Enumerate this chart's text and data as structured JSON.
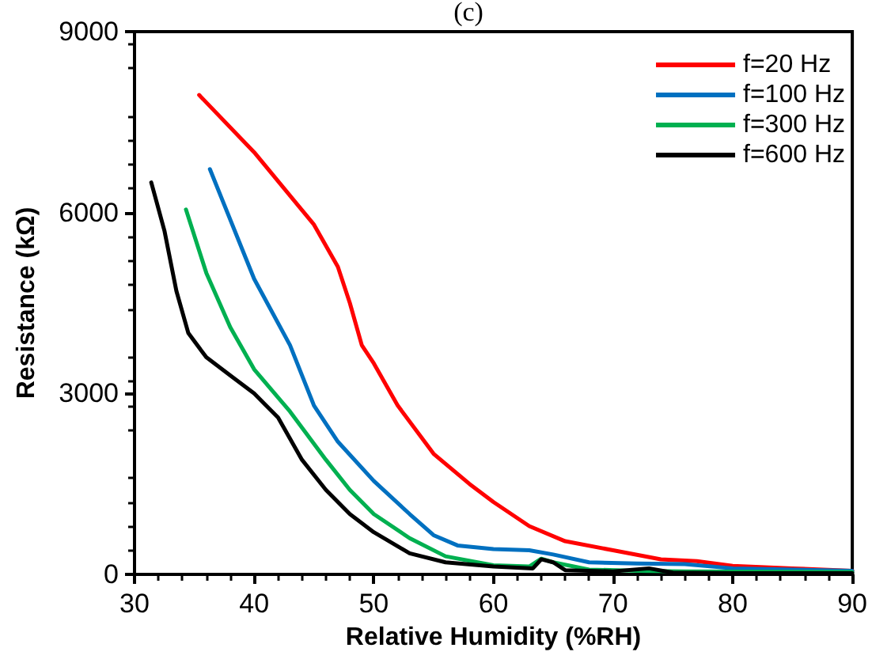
{
  "chart_data": {
    "type": "line",
    "title": "(c)",
    "xlabel": "Relative Humidity (%RH)",
    "ylabel": "Resistance (kΩ)",
    "xlim": [
      30,
      90
    ],
    "xticks": [
      30,
      40,
      50,
      60,
      70,
      80,
      90
    ],
    "ylim": [
      0,
      9000
    ],
    "yticks": [
      0,
      3000,
      6000,
      9000
    ],
    "grid": false,
    "legend": "top right",
    "marker": "none",
    "line_style": "solid",
    "series": [
      {
        "name": "f=20 Hz",
        "color": "#ff0000",
        "x": [
          35.4,
          40,
          45,
          47,
          48,
          49,
          50,
          52,
          55,
          58,
          60,
          63,
          66,
          70,
          74,
          77,
          80,
          85,
          90
        ],
        "values": [
          7950,
          7000,
          5800,
          5100,
          4500,
          3800,
          3500,
          2800,
          2000,
          1500,
          1200,
          800,
          550,
          400,
          250,
          220,
          140,
          100,
          60
        ]
      },
      {
        "name": "f=100 Hz",
        "color": "#0070c0",
        "x": [
          36.3,
          40,
          43,
          45,
          47,
          50,
          53,
          55,
          57,
          60,
          63,
          65,
          68,
          72,
          76,
          80,
          90
        ],
        "values": [
          6720,
          4900,
          3800,
          2800,
          2200,
          1550,
          1000,
          650,
          480,
          420,
          400,
          330,
          200,
          180,
          170,
          100,
          60
        ]
      },
      {
        "name": "f=300 Hz",
        "color": "#00b050",
        "x": [
          34.3,
          36,
          38,
          40,
          43,
          46,
          48,
          50,
          53,
          56,
          60,
          63,
          64,
          65,
          68,
          72,
          76,
          90
        ],
        "values": [
          6050,
          5000,
          4100,
          3400,
          2700,
          1900,
          1400,
          1000,
          600,
          300,
          150,
          130,
          260,
          200,
          80,
          60,
          50,
          40
        ]
      },
      {
        "name": "f=600 Hz",
        "color": "#000000",
        "x": [
          31.4,
          32.5,
          33.5,
          34.5,
          36,
          38,
          40,
          42,
          44,
          46,
          48,
          50,
          53,
          56,
          60,
          63.3,
          64,
          65,
          66,
          70,
          73,
          75,
          80,
          90
        ],
        "values": [
          6500,
          5700,
          4700,
          4000,
          3600,
          3300,
          3000,
          2600,
          1900,
          1400,
          1000,
          700,
          350,
          200,
          130,
          100,
          250,
          200,
          70,
          50,
          100,
          30,
          20,
          20
        ]
      }
    ]
  }
}
